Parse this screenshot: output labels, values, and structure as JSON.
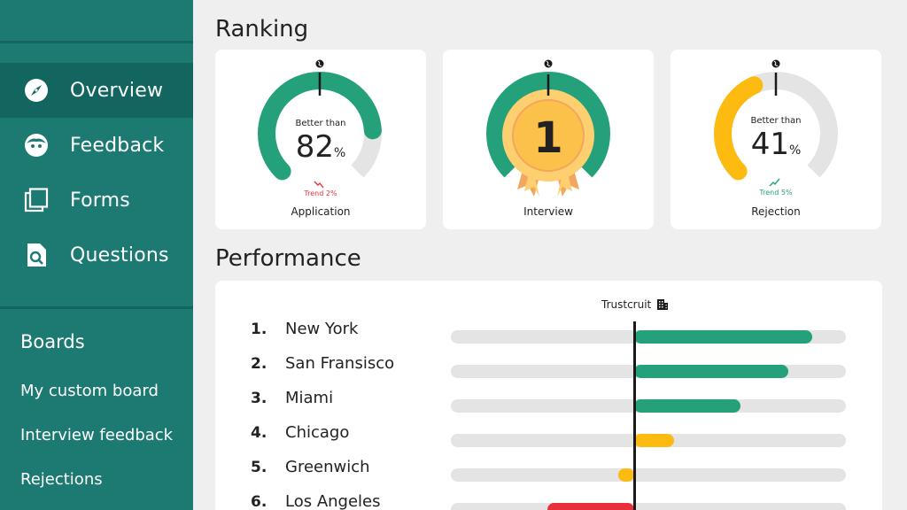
{
  "sidebar": {
    "nav": [
      {
        "label": "Overview",
        "icon": "compass-icon",
        "active": true
      },
      {
        "label": "Feedback",
        "icon": "face-icon",
        "active": false
      },
      {
        "label": "Forms",
        "icon": "forms-icon",
        "active": false
      },
      {
        "label": "Questions",
        "icon": "search-document-icon",
        "active": false
      }
    ],
    "boards_title": "Boards",
    "boards": [
      "My custom board",
      "Interview feedback",
      "Rejections"
    ]
  },
  "ranking": {
    "title": "Ranking",
    "cards": [
      {
        "label": "Application",
        "better_than": "Better than",
        "value": "82",
        "unit": "%",
        "trend": "Trend 2%",
        "trend_dir": "down",
        "gauge_fraction": 0.82,
        "color": "#24a07a"
      },
      {
        "label": "Interview",
        "rank": "1",
        "gauge_fraction": 1.0,
        "color": "#24a07a"
      },
      {
        "label": "Rejection",
        "better_than": "Better than",
        "value": "41",
        "unit": "%",
        "trend": "Trend 5%",
        "trend_dir": "up",
        "gauge_fraction": 0.41,
        "color": "#fdbb11"
      }
    ]
  },
  "performance": {
    "title": "Performance",
    "reference_label": "Trustcruit",
    "rows": [
      {
        "rank": "1.",
        "city": "New York",
        "value": 0.45,
        "color": "#24a07a"
      },
      {
        "rank": "2.",
        "city": "San Fransisco",
        "value": 0.39,
        "color": "#24a07a"
      },
      {
        "rank": "3.",
        "city": "Miami",
        "value": 0.27,
        "color": "#24a07a"
      },
      {
        "rank": "4.",
        "city": "Chicago",
        "value": 0.1,
        "color": "#fdbb11"
      },
      {
        "rank": "5.",
        "city": "Greenwich",
        "value": -0.04,
        "color": "#fdbb11"
      },
      {
        "rank": "6.",
        "city": "Los Angeles",
        "value": -0.22,
        "color": "#e8303a"
      }
    ]
  },
  "colors": {
    "sidebar": "#1d7a73",
    "sidebar_active": "#136560",
    "green": "#24a07a",
    "yellow": "#fdbb11",
    "red": "#e8303a",
    "trend_down": "#e8303a",
    "trend_up": "#24a07a"
  }
}
